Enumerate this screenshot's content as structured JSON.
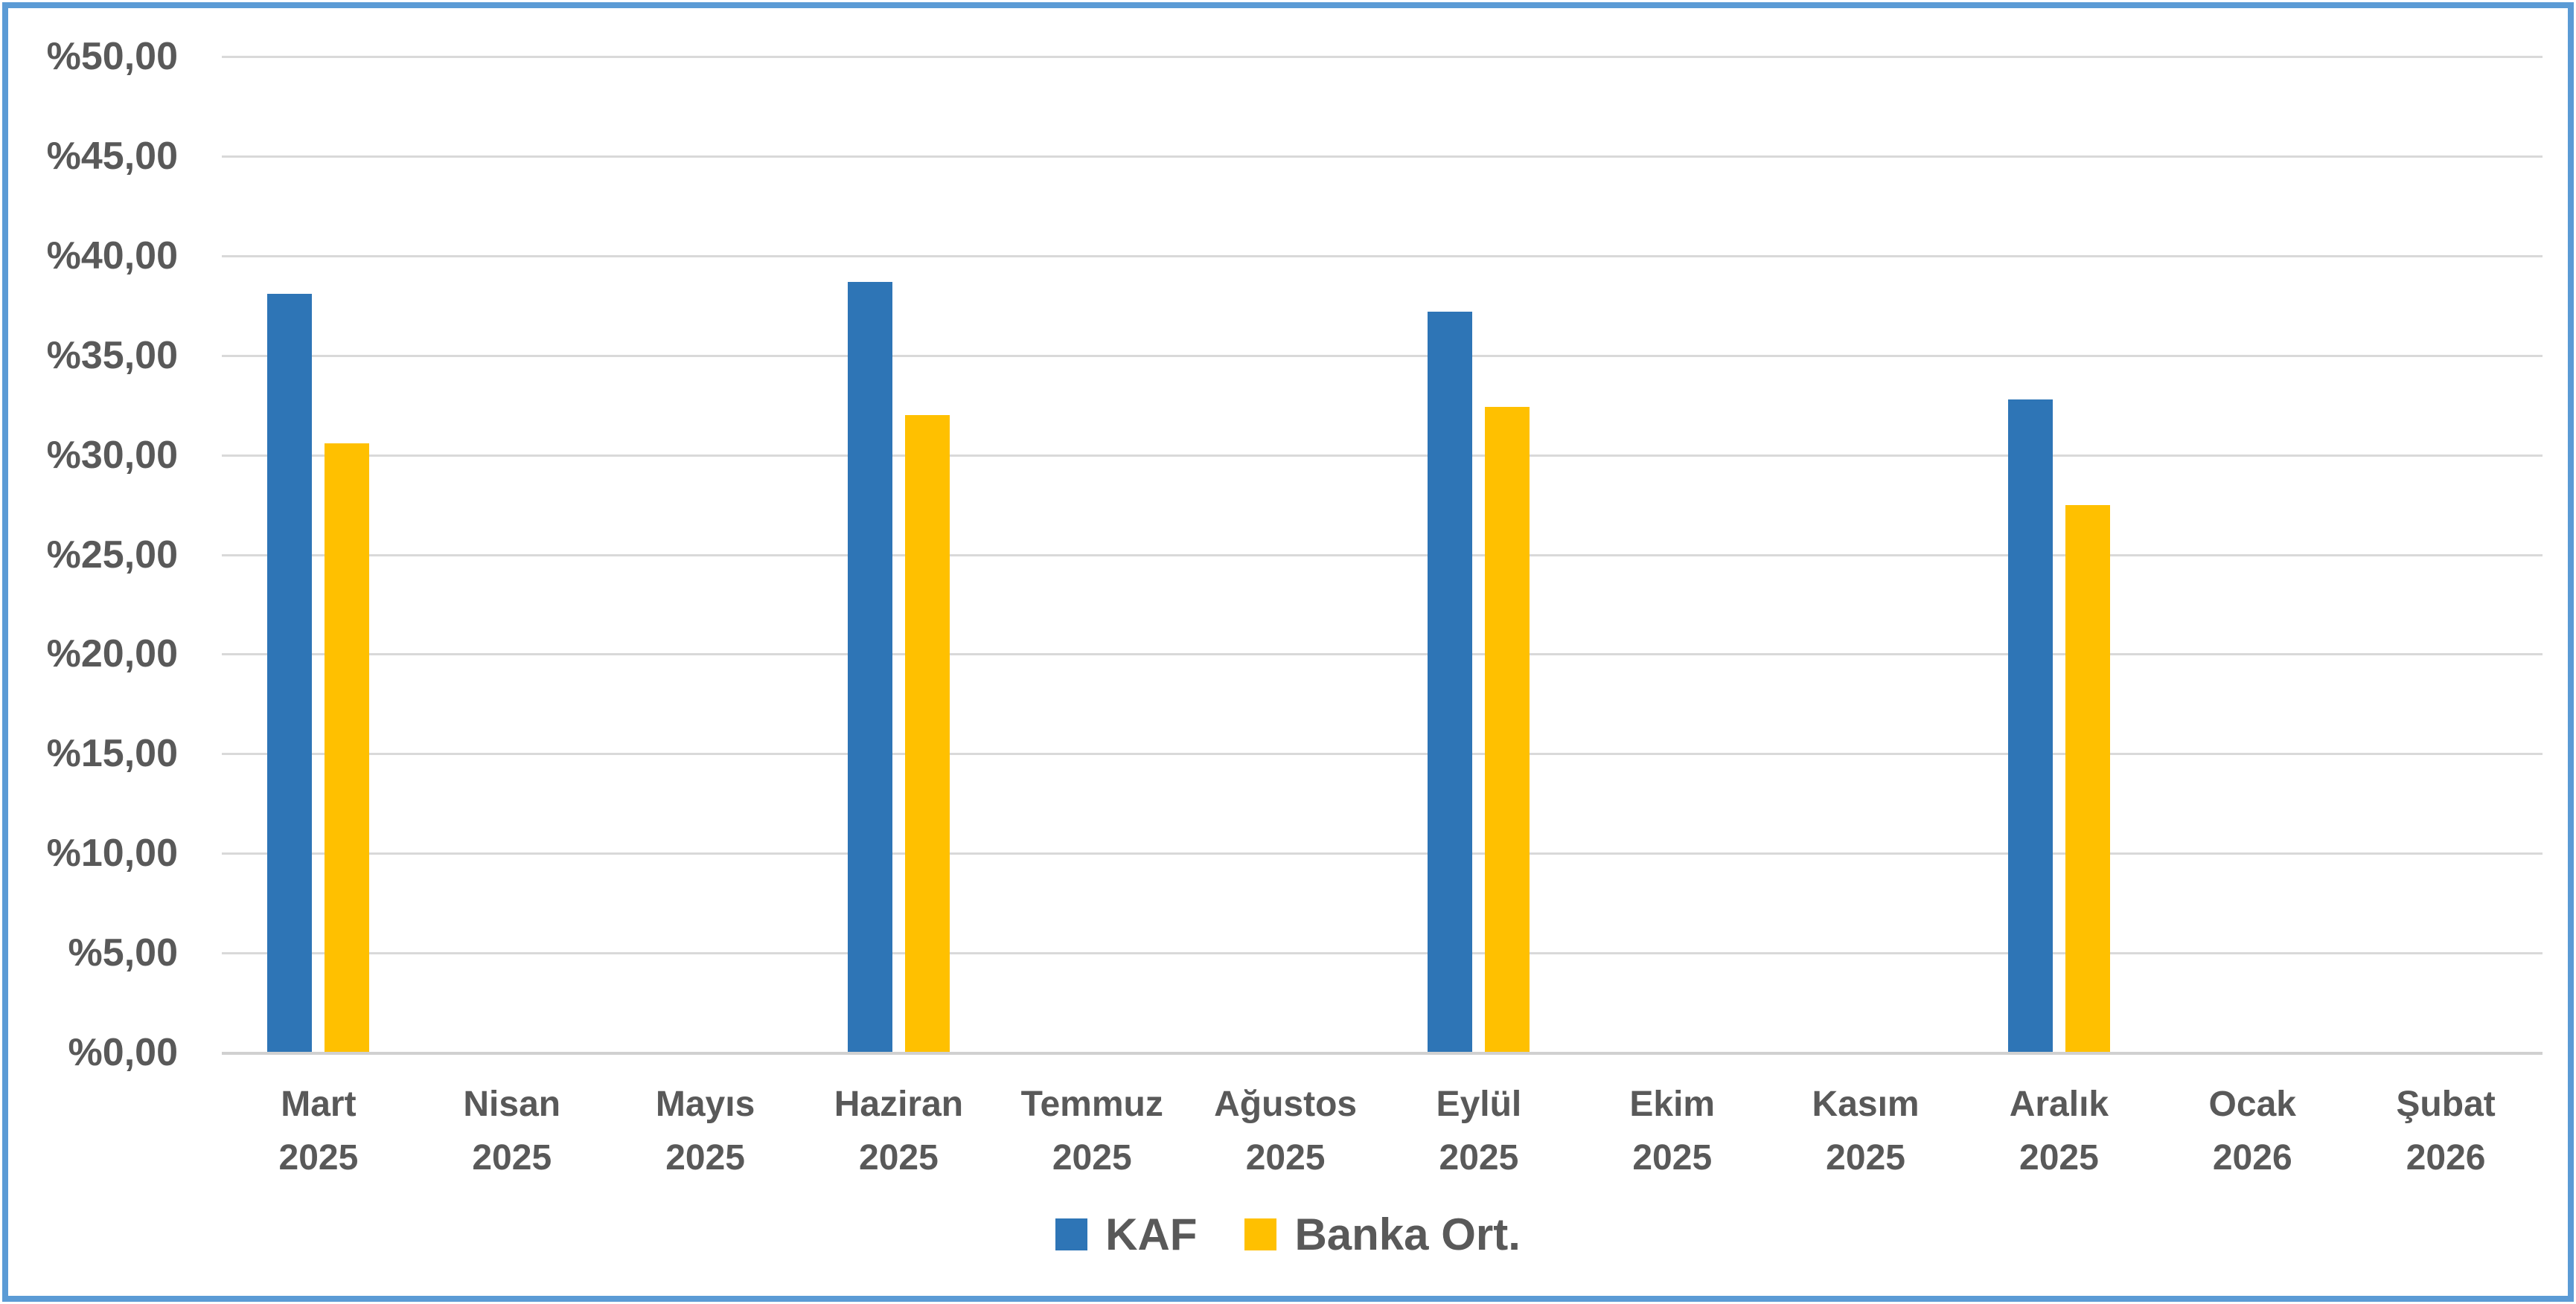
{
  "frame": {
    "border_color": "#5B9BD5",
    "background_color": "#FFFFFF"
  },
  "colors": {
    "gridline": "#D9D9D9",
    "axis_line": "#D0D0D0",
    "text": "#595959",
    "series_kaf": "#2E75B6",
    "series_banka_ort": "#FFC000"
  },
  "chart_data": {
    "type": "bar",
    "title": "",
    "xlabel": "",
    "ylabel": "",
    "ylim": [
      0,
      50
    ],
    "grid": true,
    "legend_position": "bottom-center",
    "y_ticks": [
      0,
      5,
      10,
      15,
      20,
      25,
      30,
      35,
      40,
      45,
      50
    ],
    "y_tick_labels": [
      "%0,00",
      "%5,00",
      "%10,00",
      "%15,00",
      "%20,00",
      "%25,00",
      "%30,00",
      "%35,00",
      "%40,00",
      "%45,00",
      "%50,00"
    ],
    "categories": [
      {
        "month": "Mart",
        "year": "2025"
      },
      {
        "month": "Nisan",
        "year": "2025"
      },
      {
        "month": "Mayıs",
        "year": "2025"
      },
      {
        "month": "Haziran",
        "year": "2025"
      },
      {
        "month": "Temmuz",
        "year": "2025"
      },
      {
        "month": "Ağustos",
        "year": "2025"
      },
      {
        "month": "Eylül",
        "year": "2025"
      },
      {
        "month": "Ekim",
        "year": "2025"
      },
      {
        "month": "Kasım",
        "year": "2025"
      },
      {
        "month": "Aralık",
        "year": "2025"
      },
      {
        "month": "Ocak",
        "year": "2026"
      },
      {
        "month": "Şubat",
        "year": "2026"
      }
    ],
    "series": [
      {
        "name": "KAF",
        "color": "#2E75B6",
        "values": [
          38.1,
          null,
          null,
          38.7,
          null,
          null,
          37.2,
          null,
          null,
          32.8,
          null,
          null
        ]
      },
      {
        "name": "Banka Ort.",
        "color": "#FFC000",
        "values": [
          30.6,
          null,
          null,
          32.0,
          null,
          null,
          32.4,
          null,
          null,
          27.5,
          null,
          null
        ]
      }
    ]
  }
}
